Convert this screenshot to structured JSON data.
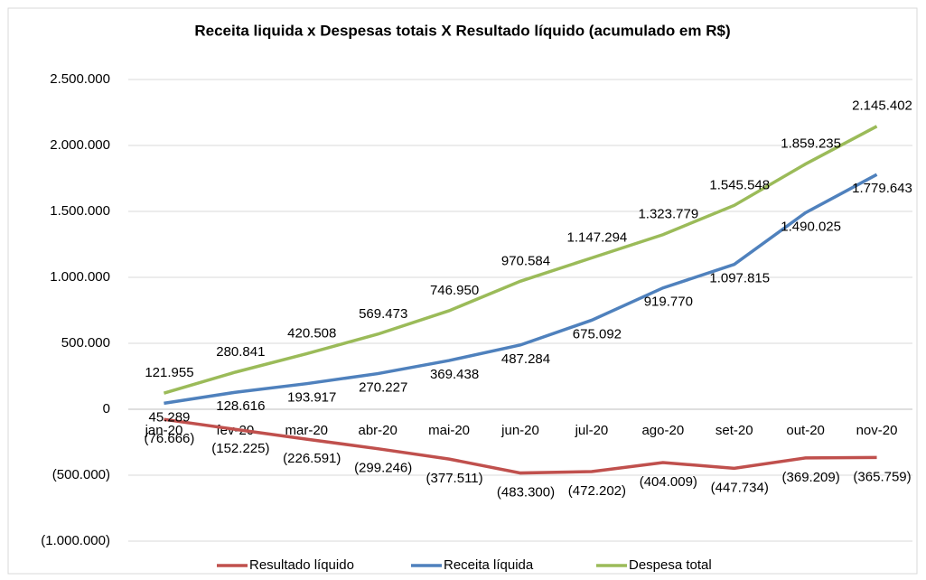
{
  "chart_data": {
    "type": "line",
    "title": "Receita liquida x Despesas totais X Resultado líquido (acumulado em R$)",
    "categories": [
      "jan-20",
      "fev-20",
      "mar-20",
      "abr-20",
      "mai-20",
      "jun-20",
      "jul-20",
      "ago-20",
      "set-20",
      "out-20",
      "nov-20"
    ],
    "series": [
      {
        "name": "Resultado líquido",
        "color": "#c0504d",
        "values": [
          -76666,
          -152225,
          -226591,
          -299246,
          -377511,
          -483300,
          -472202,
          -404009,
          -447734,
          -369209,
          -365759
        ],
        "value_labels": [
          "(76.666)",
          "(152.225)",
          "(226.591)",
          "(299.246)",
          "(377.511)",
          "(483.300)",
          "(472.202)",
          "(404.009)",
          "(447.734)",
          "(369.209)",
          "(365.759)"
        ]
      },
      {
        "name": "Receita líquida",
        "color": "#4f81bd",
        "values": [
          45289,
          128616,
          193917,
          270227,
          369438,
          487284,
          675092,
          919770,
          1097815,
          1490025,
          1779643
        ],
        "value_labels": [
          "45.289",
          "128.616",
          "193.917",
          "270.227",
          "369.438",
          "487.284",
          "675.092",
          "919.770",
          "1.097.815",
          "1.490.025",
          "1.779.643"
        ]
      },
      {
        "name": "Despesa total",
        "color": "#9bbb59",
        "values": [
          121955,
          280841,
          420508,
          569473,
          746950,
          970584,
          1147294,
          1323779,
          1545548,
          1859235,
          2145402
        ],
        "value_labels": [
          "121.955",
          "280.841",
          "420.508",
          "569.473",
          "746.950",
          "970.584",
          "1.147.294",
          "1.323.779",
          "1.545.548",
          "1.859.235",
          "2.145.402"
        ]
      }
    ],
    "ylim": [
      -1000000,
      2500000
    ],
    "yticks": [
      {
        "value": -1000000,
        "label": "(1.000.000)"
      },
      {
        "value": -500000,
        "label": "(500.000)"
      },
      0,
      {
        "value": 500000,
        "label": "500.000"
      },
      {
        "value": 1000000,
        "label": "1.000.000"
      },
      {
        "value": 1500000,
        "label": "1.500.000"
      },
      {
        "value": 2000000,
        "label": "2.000.000"
      },
      {
        "value": 2500000,
        "label": "2.500.000"
      }
    ],
    "grid": true,
    "legend": "bottom"
  }
}
